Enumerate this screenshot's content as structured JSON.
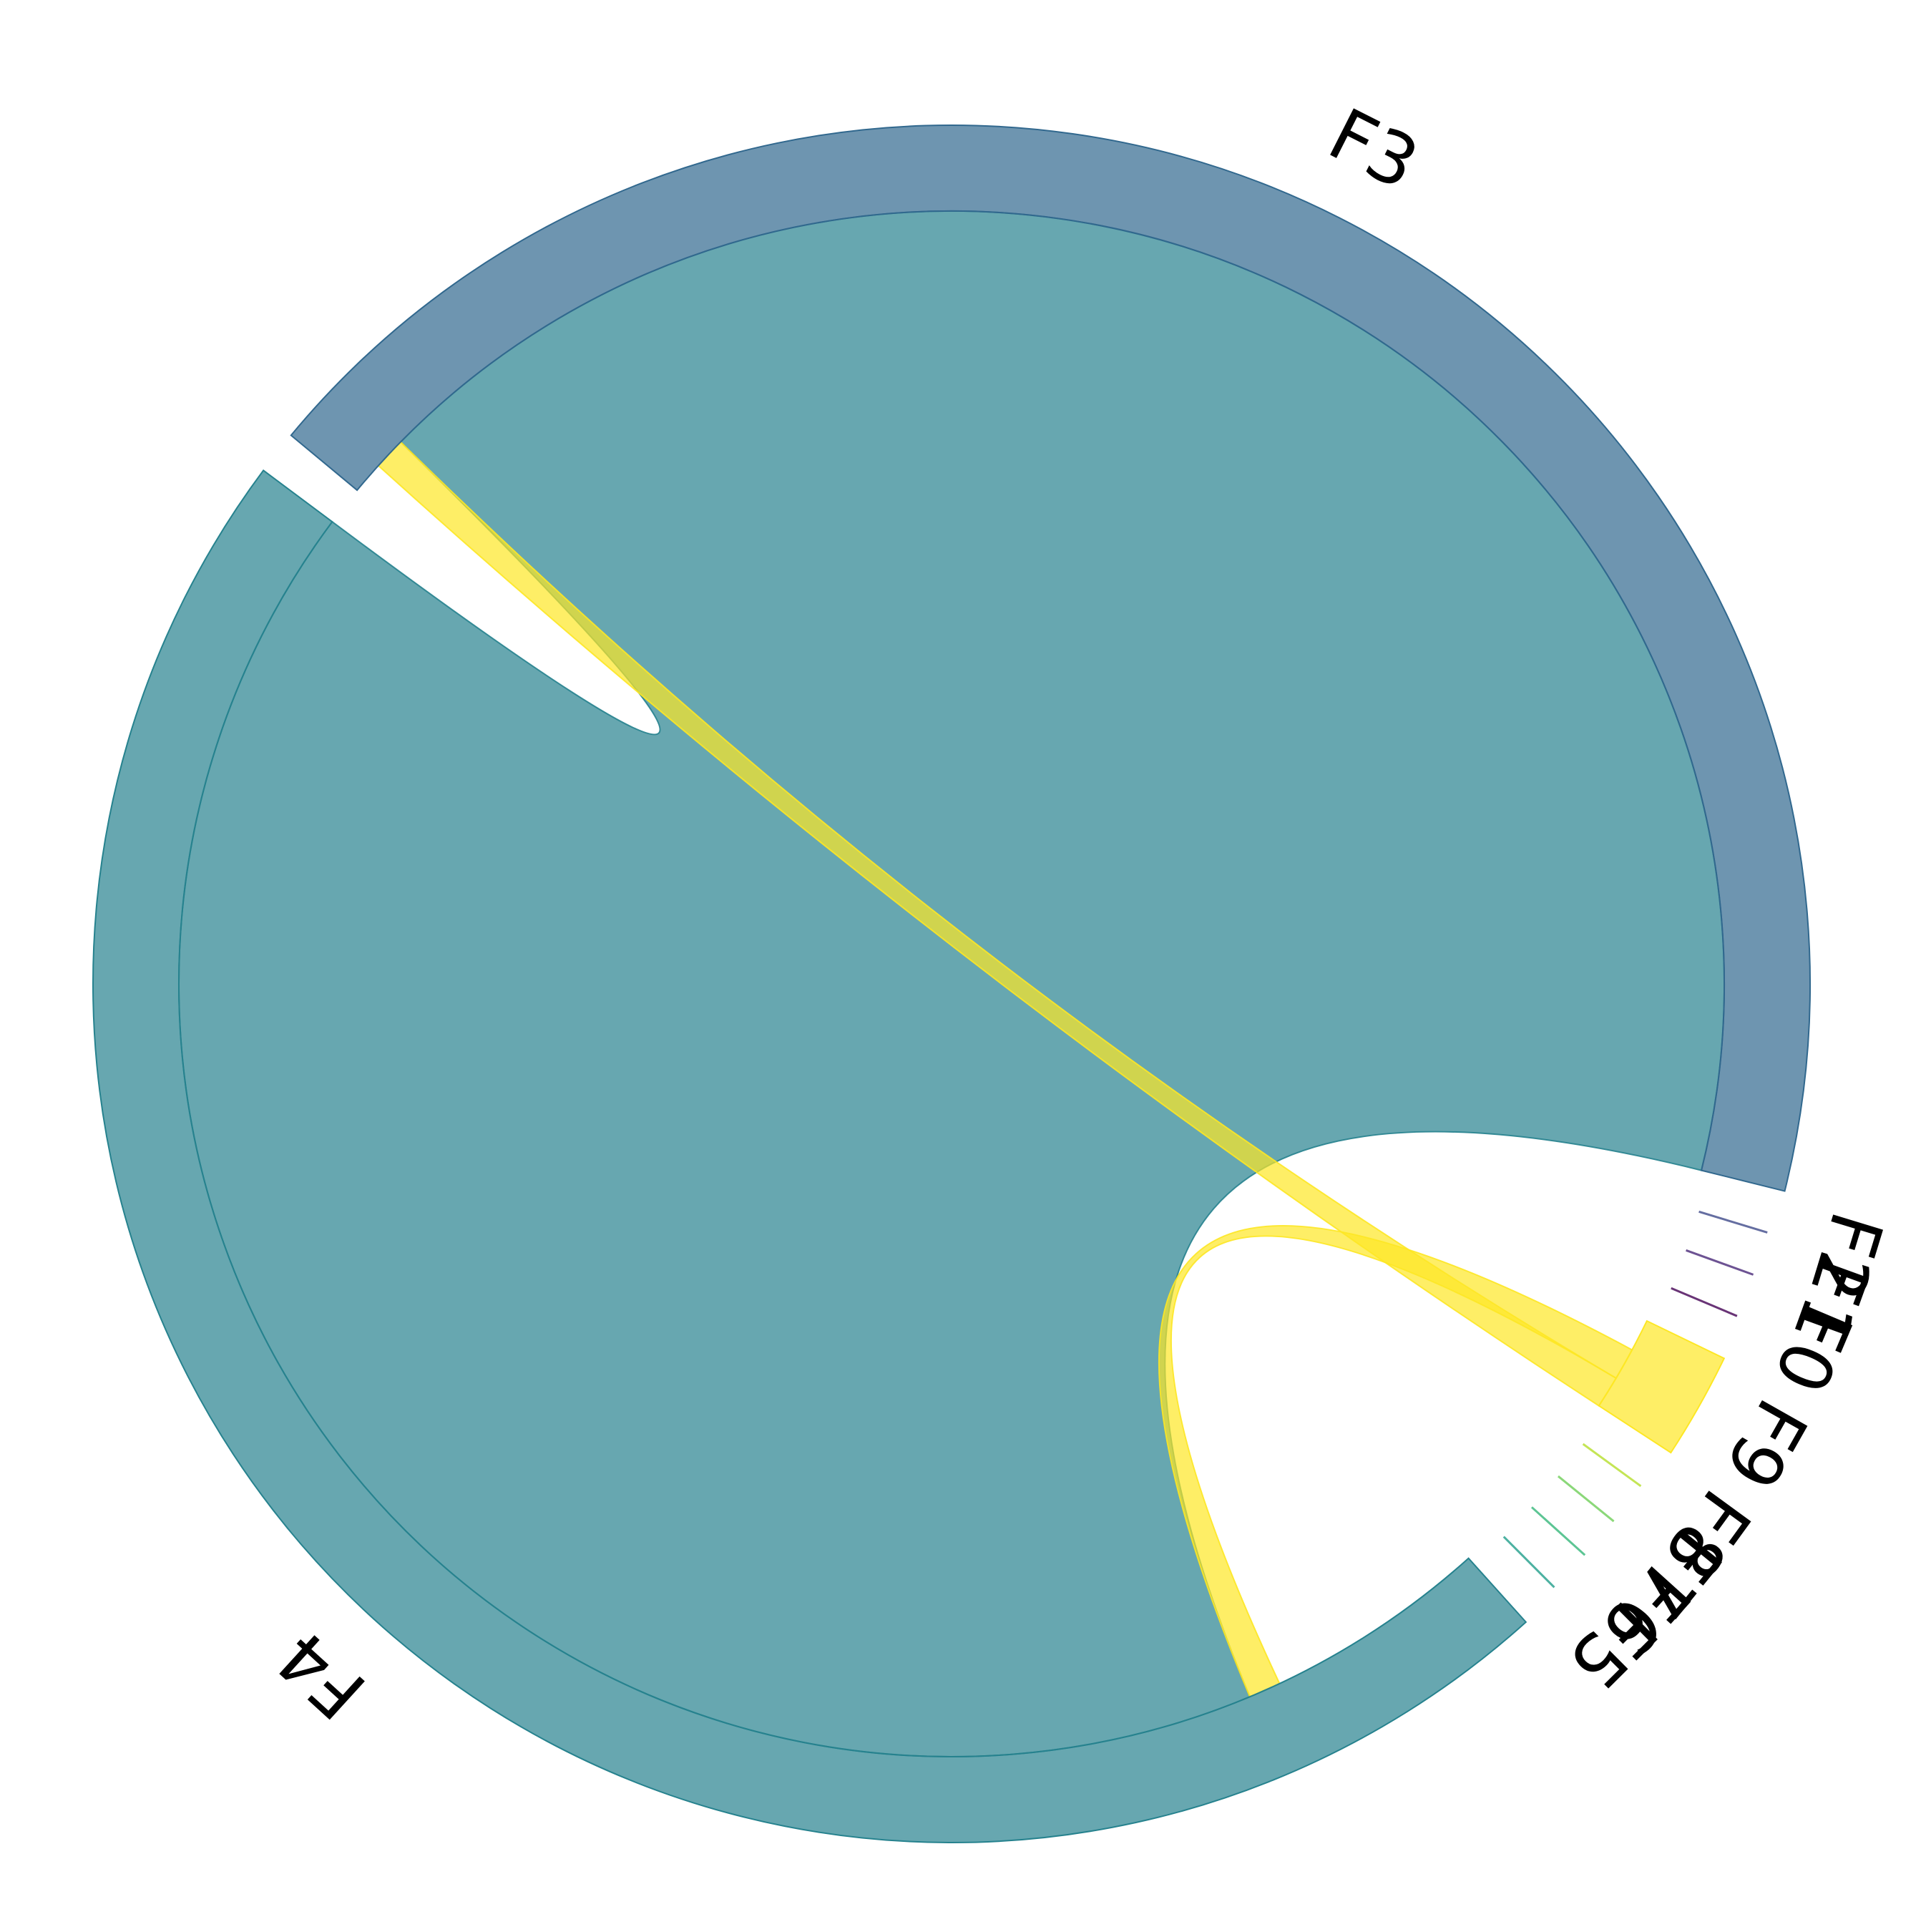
{
  "chart_data": {
    "type": "chord",
    "nodes": [
      {
        "id": "F0",
        "label": "F0",
        "value": 0,
        "color": "#440154"
      },
      {
        "id": "F1",
        "label": "F1",
        "value": 0,
        "color": "#482878"
      },
      {
        "id": "F2",
        "label": "F2",
        "value": 0,
        "color": "#3e4a89"
      },
      {
        "id": "F3",
        "label": "F3",
        "value": 32,
        "color": "#31688e"
      },
      {
        "id": "F4",
        "label": "F4",
        "value": 35,
        "color": "#26828e"
      },
      {
        "id": "F5",
        "label": "F5",
        "value": 0,
        "color": "#1f9e89"
      },
      {
        "id": "F6",
        "label": "F6",
        "value": 0,
        "color": "#35b779"
      },
      {
        "id": "F7",
        "label": "F7",
        "value": 0,
        "color": "#6ece58"
      },
      {
        "id": "F8",
        "label": "F8",
        "value": 0,
        "color": "#b5de2b"
      },
      {
        "id": "F9",
        "label": "F9",
        "value": 1.5,
        "color": "#fde725"
      }
    ],
    "links": [
      {
        "source": "F3",
        "target": "F4",
        "value": 31,
        "color": "#26828e"
      },
      {
        "source": "F3",
        "target": "F9",
        "value": 0.5,
        "color": "#fde725"
      },
      {
        "source": "F4",
        "target": "F9",
        "value": 0.5,
        "color": "#fde725"
      }
    ],
    "legend": "none"
  }
}
